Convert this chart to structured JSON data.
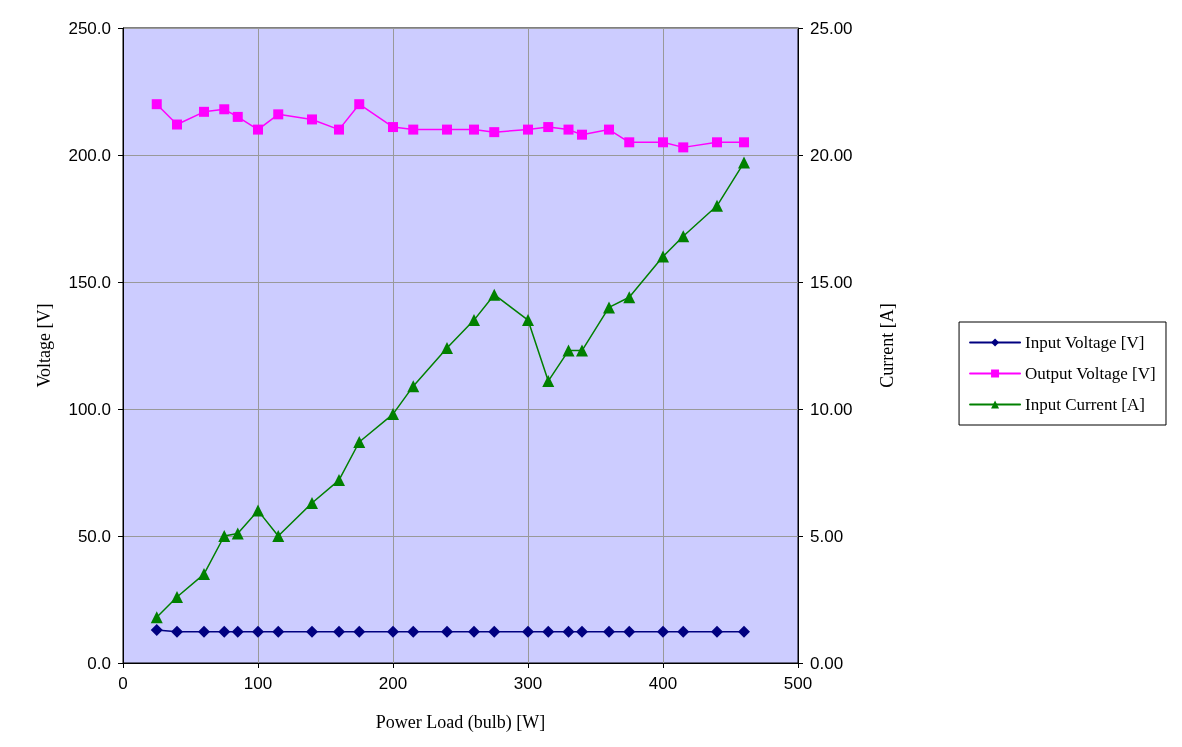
{
  "chart_data": {
    "type": "line",
    "xlabel": "Power Load (bulb) [W]",
    "ylabel": "Voltage [V]",
    "y2label": "Current [A]",
    "x": [
      25,
      40,
      60,
      75,
      85,
      100,
      115,
      140,
      160,
      175,
      200,
      215,
      240,
      260,
      275,
      300,
      315,
      330,
      340,
      360,
      375,
      400,
      415,
      440,
      460
    ],
    "series": [
      {
        "name": "Input Voltage [V]",
        "color": "#000080",
        "marker": "diamond",
        "values": [
          13.0,
          12.3,
          12.3,
          12.3,
          12.3,
          12.3,
          12.3,
          12.3,
          12.3,
          12.3,
          12.3,
          12.3,
          12.3,
          12.3,
          12.3,
          12.3,
          12.3,
          12.3,
          12.3,
          12.3,
          12.3,
          12.3,
          12.3,
          12.3,
          12.3
        ]
      },
      {
        "name": "Output Voltage [V]",
        "color": "#ff00ff",
        "marker": "square",
        "values": [
          220,
          212,
          217,
          218,
          215,
          210,
          216,
          214,
          210,
          220,
          211,
          210,
          210,
          210,
          209,
          210,
          211,
          210,
          208,
          210,
          205,
          205,
          203,
          205,
          205
        ]
      },
      {
        "name": "Input Current [A]",
        "color": "#008000",
        "marker": "triangle",
        "axis": "y2",
        "values": [
          1.8,
          2.6,
          3.5,
          5.0,
          5.1,
          6.0,
          5.0,
          6.3,
          7.2,
          8.7,
          9.8,
          10.9,
          12.4,
          13.5,
          14.5,
          13.5,
          11.1,
          12.3,
          12.3,
          14.0,
          14.4,
          16.0,
          16.8,
          18.0,
          19.7
        ]
      }
    ],
    "xlim": [
      0,
      500
    ],
    "xticks": [
      0,
      100,
      200,
      300,
      400,
      500
    ],
    "ylim": [
      0,
      250
    ],
    "yticks": [
      {
        "value": 0,
        "label": "0.0"
      },
      {
        "value": 50,
        "label": "50.0"
      },
      {
        "value": 100,
        "label": "100.0"
      },
      {
        "value": 150,
        "label": "150.0"
      },
      {
        "value": 200,
        "label": "200.0"
      },
      {
        "value": 250,
        "label": "250.0"
      }
    ],
    "y2lim": [
      0,
      25
    ],
    "y2ticks": [
      {
        "value": 0,
        "label": "0.00"
      },
      {
        "value": 5,
        "label": "5.00"
      },
      {
        "value": 10,
        "label": "10.00"
      },
      {
        "value": 15,
        "label": "15.00"
      },
      {
        "value": 20,
        "label": "20.00"
      },
      {
        "value": 25,
        "label": "25.00"
      }
    ],
    "grid": true,
    "legend": "right",
    "line_style": "solid"
  }
}
